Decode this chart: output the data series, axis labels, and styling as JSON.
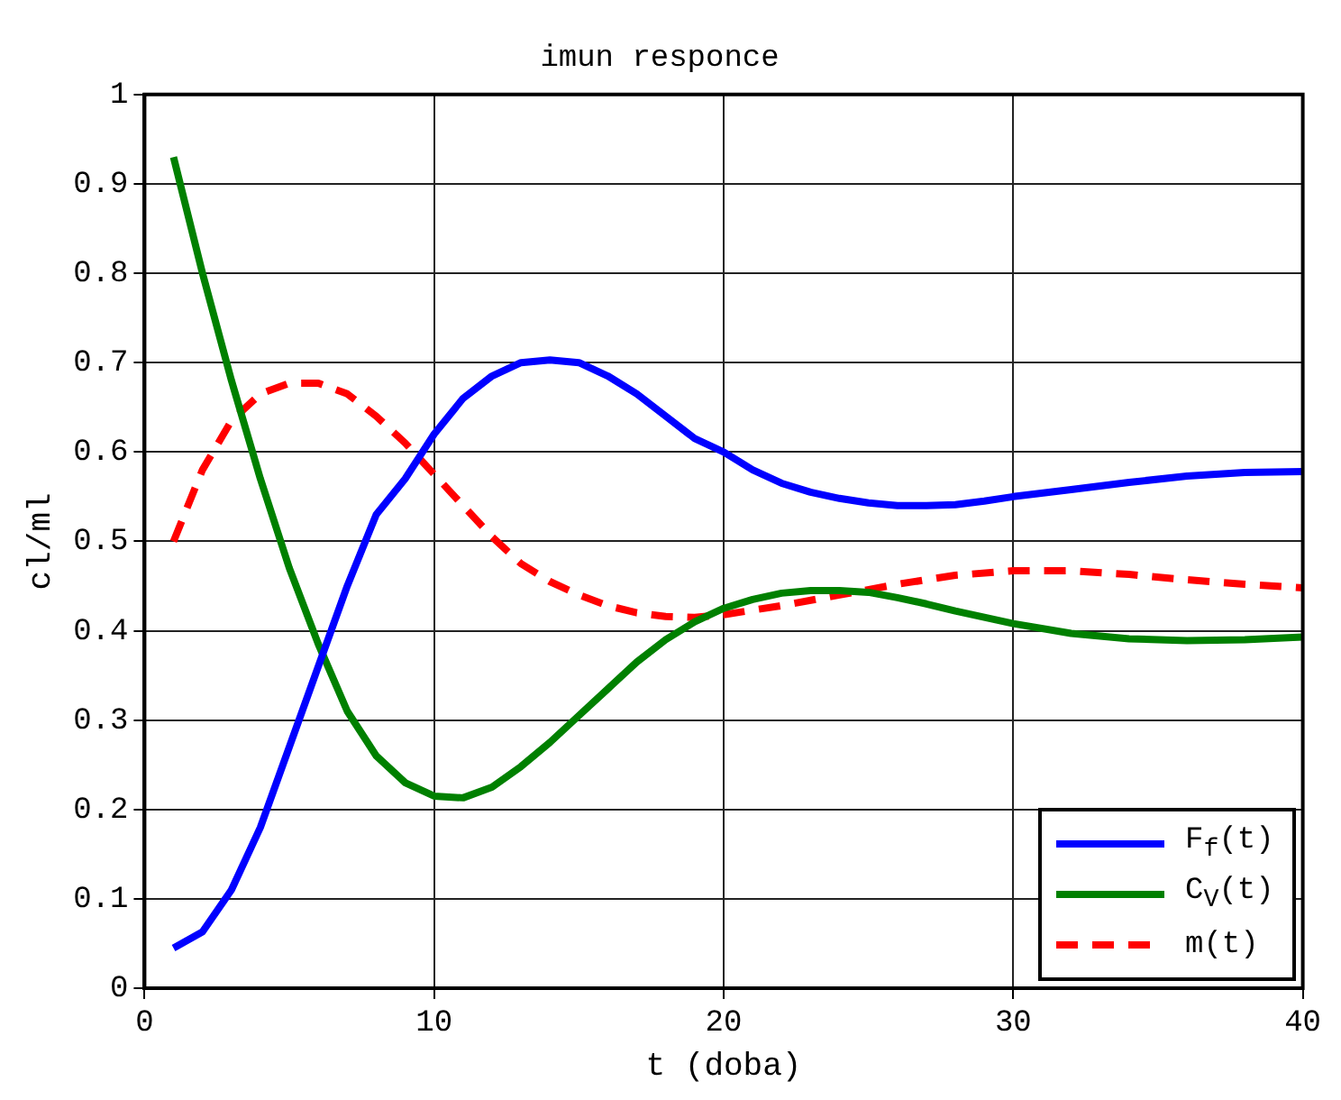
{
  "chart_data": {
    "type": "line",
    "title": "imun responce",
    "xlabel": "t (doba)",
    "ylabel": "cl/ml",
    "xlim": [
      0,
      40
    ],
    "xticks": [
      0,
      10,
      20,
      30,
      40
    ],
    "ylim": [
      0,
      1
    ],
    "yticks": [
      0,
      0.1,
      0.2,
      0.3,
      0.4,
      0.5,
      0.6,
      0.7,
      0.8,
      0.9,
      1
    ],
    "grid": true,
    "legend": "bottom right",
    "marker": "none",
    "series": [
      {
        "name": "F$_{f}$(t)",
        "color": "#0000ff",
        "line_style": "solid",
        "x": [
          1,
          2,
          3,
          4,
          5,
          6,
          7,
          8,
          9,
          10,
          11,
          12,
          13,
          14,
          15,
          16,
          17,
          18,
          19,
          20,
          21,
          22,
          23,
          24,
          25,
          26,
          27,
          28,
          29,
          30,
          32,
          34,
          36,
          38,
          40
        ],
        "values": [
          0.045,
          0.063,
          0.11,
          0.18,
          0.27,
          0.36,
          0.45,
          0.53,
          0.57,
          0.62,
          0.66,
          0.685,
          0.7,
          0.703,
          0.7,
          0.685,
          0.665,
          0.64,
          0.615,
          0.6,
          0.58,
          0.565,
          0.555,
          0.548,
          0.543,
          0.54,
          0.54,
          0.541,
          0.545,
          0.55,
          0.558,
          0.566,
          0.573,
          0.577,
          0.578
        ]
      },
      {
        "name": "C$_{V}$(t)",
        "color": "#008000",
        "line_style": "solid",
        "x": [
          1,
          2,
          3,
          4,
          5,
          6,
          7,
          8,
          9,
          10,
          11,
          12,
          13,
          14,
          15,
          16,
          17,
          18,
          19,
          20,
          21,
          22,
          23,
          24,
          25,
          26,
          27,
          28,
          30,
          32,
          34,
          36,
          38,
          40
        ],
        "values": [
          0.93,
          0.8,
          0.68,
          0.57,
          0.47,
          0.385,
          0.31,
          0.26,
          0.23,
          0.215,
          0.213,
          0.225,
          0.248,
          0.275,
          0.305,
          0.335,
          0.365,
          0.39,
          0.41,
          0.425,
          0.435,
          0.442,
          0.445,
          0.445,
          0.443,
          0.437,
          0.43,
          0.422,
          0.408,
          0.397,
          0.391,
          0.389,
          0.39,
          0.393
        ]
      },
      {
        "name": "m(t)",
        "color": "#ff0000",
        "line_style": "dashed",
        "x": [
          1,
          2,
          3,
          4,
          5,
          6,
          7,
          8,
          9,
          10,
          11,
          12,
          13,
          14,
          15,
          16,
          17,
          18,
          19,
          20,
          22,
          24,
          26,
          28,
          30,
          32,
          34,
          36,
          38,
          40
        ],
        "values": [
          0.5,
          0.58,
          0.635,
          0.665,
          0.677,
          0.677,
          0.665,
          0.64,
          0.61,
          0.575,
          0.54,
          0.505,
          0.475,
          0.455,
          0.44,
          0.428,
          0.42,
          0.416,
          0.415,
          0.418,
          0.428,
          0.44,
          0.452,
          0.462,
          0.467,
          0.467,
          0.463,
          0.457,
          0.452,
          0.448
        ]
      }
    ]
  }
}
